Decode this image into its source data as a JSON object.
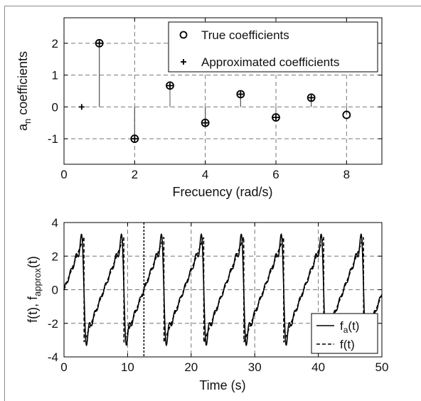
{
  "chart_data": [
    {
      "type": "stem",
      "xlabel": "Frecuency (rad/s)",
      "ylabel": "a_n coefficients",
      "xlim": [
        0,
        9
      ],
      "ylim": [
        -1.8,
        2.8
      ],
      "xticks": [
        0,
        2,
        4,
        6,
        8
      ],
      "yticks": [
        -1,
        0,
        1,
        2
      ],
      "xtick_labels": [
        "0",
        "2",
        "4",
        "6",
        "8"
      ],
      "ytick_labels": [
        "-1",
        "0",
        "1",
        "2"
      ],
      "grid": true,
      "legend_position": "top-right",
      "series": [
        {
          "name": "True coefficients",
          "marker": "circle",
          "x": [
            1,
            2,
            3,
            4,
            5,
            6,
            7,
            8
          ],
          "values": [
            2.0,
            -1.0,
            0.67,
            -0.5,
            0.4,
            -0.33,
            0.29,
            -0.25
          ]
        },
        {
          "name": "Approximated coefficients",
          "marker": "plus",
          "x": [
            0.5,
            1,
            2,
            3,
            4,
            5,
            6,
            7
          ],
          "values": [
            0.0,
            2.0,
            -1.0,
            0.67,
            -0.5,
            0.4,
            -0.33,
            0.29
          ]
        }
      ]
    },
    {
      "type": "line",
      "xlabel": "Time (s)",
      "ylabel": "f(t), f_approx(t)",
      "xlim": [
        0,
        50
      ],
      "ylim": [
        -4,
        4
      ],
      "xticks": [
        0,
        10,
        20,
        30,
        40,
        50
      ],
      "yticks": [
        -4,
        -2,
        0,
        2,
        4
      ],
      "xtick_labels": [
        "0",
        "10",
        "20",
        "30",
        "40",
        "50"
      ],
      "ytick_labels": [
        "-4",
        "-2",
        "0",
        "2",
        "4"
      ],
      "grid": true,
      "legend_position": "bottom-right",
      "vertical_marker_x": 12.57,
      "period": 6.2832,
      "amplitude": 3.1416,
      "harmonics": 7,
      "series": [
        {
          "name": "f_a(t)",
          "style": "solid"
        },
        {
          "name": "f(t)",
          "style": "dashed"
        }
      ]
    }
  ],
  "legend": {
    "top": [
      "True coefficients",
      "Approximated coefficients"
    ],
    "bottom_base": [
      "f",
      "f"
    ],
    "bottom_sub": [
      "a",
      ""
    ],
    "bottom_tail": [
      "(t)",
      "(t)"
    ]
  },
  "labels": {
    "top_ylabel_main": "a",
    "top_ylabel_sub": "n",
    "top_ylabel_tail": " coefficients",
    "top_xlabel": "Frecuency (rad/s)",
    "bottom_ylabel_main": "f(t), f",
    "bottom_ylabel_sub": "approx",
    "bottom_ylabel_tail": "(t)",
    "bottom_xlabel": "Time (s)"
  }
}
